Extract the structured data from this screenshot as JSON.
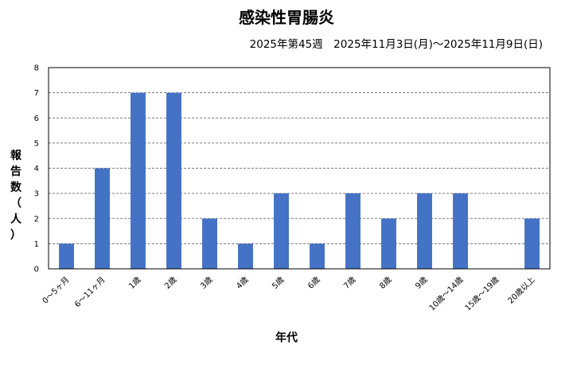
{
  "chart_data": {
    "type": "bar",
    "title": "感染性胃腸炎",
    "subtitle": "2025年第45週　2025年11月3日(月)～2025年11月9日(日)",
    "xlabel": "年代",
    "ylabel": "報告数（人）",
    "ylim": [
      0,
      8
    ],
    "yticks": [
      0,
      1,
      2,
      3,
      4,
      5,
      6,
      7,
      8
    ],
    "grid": true,
    "legend": "none",
    "bar_color": "#4472C4",
    "categories": [
      "0～5ヶ月",
      "6～11ヶ月",
      "1歳",
      "2歳",
      "3歳",
      "4歳",
      "5歳",
      "6歳",
      "7歳",
      "8歳",
      "9歳",
      "10歳～14歳",
      "15歳～19歳",
      "20歳以上"
    ],
    "values": [
      1,
      4,
      7,
      7,
      2,
      1,
      3,
      1,
      3,
      2,
      3,
      3,
      0,
      2
    ]
  }
}
